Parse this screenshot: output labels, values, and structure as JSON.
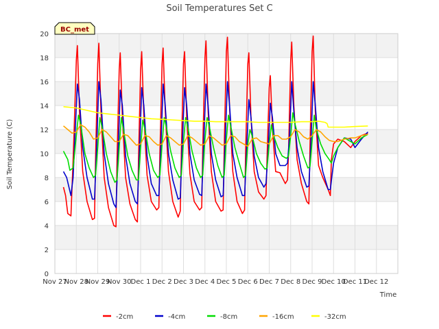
{
  "chart_data": {
    "type": "line",
    "title": "Soil Temperatures Set C",
    "xlabel": "Time",
    "ylabel": "Soil Temperature (C)",
    "site_label": "BC_met",
    "xlim": [
      0,
      16
    ],
    "ylim": [
      0,
      20
    ],
    "x_ticks": [
      {
        "x": 0,
        "label": "Nov 27"
      },
      {
        "x": 1,
        "label": "Nov 28"
      },
      {
        "x": 2,
        "label": "Nov 29"
      },
      {
        "x": 3,
        "label": "Nov 30"
      },
      {
        "x": 4,
        "label": "Dec 1"
      },
      {
        "x": 5,
        "label": "Dec 2"
      },
      {
        "x": 6,
        "label": "Dec 3"
      },
      {
        "x": 7,
        "label": "Dec 4"
      },
      {
        "x": 8,
        "label": "Dec 5"
      },
      {
        "x": 9,
        "label": "Dec 6"
      },
      {
        "x": 10,
        "label": "Dec 7"
      },
      {
        "x": 11,
        "label": "Dec 8"
      },
      {
        "x": 12,
        "label": "Dec 9"
      },
      {
        "x": 13,
        "label": "Dec 10"
      },
      {
        "x": 14,
        "label": "Dec 11"
      },
      {
        "x": 15,
        "label": "Dec 12"
      }
    ],
    "y_ticks": [
      0,
      2,
      4,
      6,
      8,
      10,
      12,
      14,
      16,
      18,
      20
    ],
    "grid": true,
    "legend_position": "bottom",
    "series": [
      {
        "name": "-2cm",
        "color": "#ff0000",
        "x": [
          0.4,
          0.5,
          0.6,
          0.75,
          0.85,
          0.9,
          1.0,
          1.05,
          1.15,
          1.3,
          1.5,
          1.75,
          1.85,
          1.9,
          2.0,
          2.05,
          2.15,
          2.3,
          2.5,
          2.75,
          2.85,
          2.9,
          3.0,
          3.05,
          3.15,
          3.3,
          3.5,
          3.75,
          3.85,
          3.9,
          4.0,
          4.05,
          4.15,
          4.3,
          4.5,
          4.75,
          4.85,
          4.9,
          5.0,
          5.05,
          5.15,
          5.3,
          5.5,
          5.75,
          5.85,
          5.9,
          6.0,
          6.05,
          6.15,
          6.3,
          6.5,
          6.75,
          6.85,
          6.9,
          7.0,
          7.05,
          7.15,
          7.3,
          7.5,
          7.75,
          7.85,
          7.9,
          8.0,
          8.05,
          8.15,
          8.3,
          8.5,
          8.75,
          8.85,
          8.9,
          9.0,
          9.05,
          9.15,
          9.3,
          9.5,
          9.75,
          9.85,
          9.9,
          10.0,
          10.05,
          10.15,
          10.3,
          10.5,
          10.75,
          10.85,
          10.9,
          11.0,
          11.05,
          11.15,
          11.3,
          11.5,
          11.75,
          11.85,
          11.9,
          12.0,
          12.05,
          12.15,
          12.3,
          12.5,
          12.75,
          12.85,
          12.9,
          13.0,
          13.2,
          13.5,
          13.8,
          14.0,
          14.3,
          14.6
        ],
        "values": [
          7.2,
          6.5,
          5.0,
          4.8,
          9.5,
          12.0,
          17.8,
          19.0,
          13.5,
          8.5,
          6.0,
          4.5,
          4.6,
          9.8,
          17.5,
          19.2,
          13.5,
          8.0,
          5.5,
          4.0,
          3.9,
          9.5,
          17.0,
          18.4,
          13.0,
          8.0,
          5.8,
          4.5,
          4.3,
          9.5,
          17.0,
          18.5,
          13.2,
          8.2,
          6.0,
          5.3,
          5.5,
          10.0,
          17.5,
          18.8,
          13.5,
          8.5,
          6.0,
          4.7,
          5.2,
          10.2,
          17.5,
          18.5,
          13.0,
          8.3,
          6.0,
          5.3,
          5.5,
          10.5,
          18.0,
          19.4,
          13.5,
          8.5,
          6.0,
          5.2,
          5.3,
          10.5,
          18.5,
          19.7,
          13.8,
          8.5,
          6.0,
          5.0,
          5.3,
          10.2,
          17.5,
          18.4,
          13.0,
          8.5,
          6.8,
          6.2,
          6.5,
          9.8,
          15.5,
          16.5,
          12.0,
          8.5,
          8.4,
          7.5,
          7.8,
          10.0,
          17.8,
          19.3,
          14.0,
          9.5,
          7.5,
          6.0,
          5.8,
          10.5,
          18.5,
          19.8,
          13.5,
          9.0,
          8.0,
          7.0,
          6.5,
          9.5,
          10.8,
          11.2,
          11.0,
          10.5,
          11.0,
          11.5,
          11.7
        ]
      },
      {
        "name": "-4cm",
        "color": "#0000cc",
        "x": [
          0.4,
          0.55,
          0.75,
          0.85,
          0.95,
          1.05,
          1.15,
          1.3,
          1.5,
          1.75,
          1.85,
          1.95,
          2.05,
          2.15,
          2.3,
          2.5,
          2.75,
          2.85,
          2.95,
          3.05,
          3.15,
          3.3,
          3.5,
          3.75,
          3.85,
          3.95,
          4.05,
          4.15,
          4.3,
          4.5,
          4.75,
          4.85,
          4.95,
          5.05,
          5.15,
          5.3,
          5.5,
          5.75,
          5.85,
          5.95,
          6.05,
          6.15,
          6.3,
          6.5,
          6.75,
          6.85,
          6.95,
          7.05,
          7.15,
          7.3,
          7.5,
          7.75,
          7.85,
          7.95,
          8.05,
          8.15,
          8.3,
          8.5,
          8.75,
          8.85,
          8.95,
          9.05,
          9.15,
          9.3,
          9.5,
          9.75,
          9.85,
          9.95,
          10.05,
          10.15,
          10.3,
          10.5,
          10.75,
          10.85,
          10.95,
          11.05,
          11.15,
          11.3,
          11.5,
          11.75,
          11.85,
          11.95,
          12.05,
          12.15,
          12.3,
          12.5,
          12.75,
          12.85,
          12.95,
          13.0,
          13.2,
          13.5,
          13.8,
          14.0,
          14.3,
          14.6
        ],
        "values": [
          8.5,
          8.0,
          6.5,
          8.0,
          12.0,
          15.8,
          14.5,
          10.5,
          8.0,
          6.2,
          6.2,
          10.5,
          16.0,
          14.5,
          10.0,
          7.5,
          5.8,
          5.5,
          10.0,
          15.3,
          14.0,
          9.8,
          7.5,
          6.0,
          5.8,
          10.2,
          15.5,
          14.0,
          9.8,
          7.5,
          6.5,
          6.5,
          10.8,
          15.8,
          14.0,
          10.0,
          7.8,
          6.2,
          6.3,
          11.0,
          15.5,
          14.0,
          10.0,
          7.8,
          6.6,
          6.5,
          11.2,
          15.8,
          14.0,
          10.0,
          7.8,
          6.4,
          6.5,
          11.2,
          16.0,
          14.0,
          10.0,
          8.0,
          6.5,
          6.5,
          10.5,
          14.5,
          13.0,
          9.8,
          8.0,
          7.2,
          7.5,
          10.2,
          14.2,
          13.0,
          10.0,
          9.0,
          9.0,
          9.2,
          11.5,
          16.0,
          13.5,
          10.5,
          8.5,
          7.2,
          7.3,
          11.0,
          16.0,
          14.0,
          10.5,
          8.5,
          7.0,
          7.0,
          8.5,
          9.2,
          10.5,
          11.3,
          11.2,
          10.5,
          11.2,
          11.8
        ]
      },
      {
        "name": "-8cm",
        "color": "#00dd00",
        "x": [
          0.4,
          0.6,
          0.7,
          0.85,
          1.0,
          1.1,
          1.2,
          1.4,
          1.6,
          1.8,
          1.9,
          2.0,
          2.1,
          2.2,
          2.4,
          2.6,
          2.8,
          2.9,
          3.0,
          3.1,
          3.2,
          3.4,
          3.6,
          3.8,
          3.9,
          4.0,
          4.1,
          4.2,
          4.4,
          4.6,
          4.8,
          4.9,
          5.0,
          5.1,
          5.2,
          5.4,
          5.6,
          5.8,
          5.9,
          6.0,
          6.1,
          6.2,
          6.4,
          6.6,
          6.8,
          6.9,
          7.0,
          7.1,
          7.2,
          7.4,
          7.6,
          7.8,
          7.9,
          8.0,
          8.1,
          8.2,
          8.4,
          8.6,
          8.8,
          8.9,
          9.0,
          9.1,
          9.2,
          9.4,
          9.6,
          9.8,
          9.9,
          10.0,
          10.1,
          10.2,
          10.4,
          10.6,
          10.8,
          10.9,
          11.0,
          11.1,
          11.2,
          11.4,
          11.6,
          11.8,
          11.9,
          12.0,
          12.1,
          12.2,
          12.4,
          12.6,
          12.8,
          12.9,
          13.0,
          13.2,
          13.5,
          13.8,
          14.0,
          14.3,
          14.6
        ],
        "values": [
          10.2,
          9.5,
          8.6,
          8.8,
          11.5,
          13.2,
          12.5,
          10.0,
          8.8,
          8.0,
          8.2,
          10.5,
          13.0,
          12.2,
          10.0,
          8.5,
          7.6,
          7.8,
          10.5,
          13.0,
          12.0,
          9.8,
          8.6,
          7.8,
          7.8,
          10.5,
          12.8,
          12.0,
          10.0,
          8.6,
          8.0,
          8.2,
          10.8,
          13.0,
          12.2,
          10.2,
          8.8,
          8.0,
          8.2,
          11.0,
          13.0,
          12.2,
          10.2,
          8.8,
          8.0,
          8.2,
          11.2,
          13.0,
          12.3,
          10.5,
          9.0,
          8.0,
          8.2,
          11.2,
          13.2,
          12.3,
          10.5,
          9.2,
          8.0,
          8.2,
          10.8,
          12.0,
          11.5,
          10.0,
          9.2,
          8.7,
          8.8,
          10.8,
          12.4,
          11.5,
          10.5,
          9.8,
          9.6,
          9.8,
          11.5,
          13.4,
          12.5,
          11.0,
          9.8,
          8.8,
          8.9,
          11.0,
          13.2,
          12.0,
          10.8,
          10.0,
          9.5,
          9.2,
          9.8,
          10.5,
          11.3,
          11.0,
          10.8,
          11.3,
          11.6
        ]
      },
      {
        "name": "-16cm",
        "color": "#ffa500",
        "x": [
          0.4,
          0.6,
          0.8,
          1.0,
          1.2,
          1.4,
          1.6,
          1.8,
          2.0,
          2.2,
          2.4,
          2.6,
          2.8,
          3.0,
          3.2,
          3.4,
          3.6,
          3.8,
          4.0,
          4.2,
          4.4,
          4.6,
          4.8,
          5.0,
          5.2,
          5.4,
          5.6,
          5.8,
          6.0,
          6.2,
          6.4,
          6.6,
          6.8,
          7.0,
          7.2,
          7.4,
          7.6,
          7.8,
          8.0,
          8.2,
          8.4,
          8.6,
          8.8,
          9.0,
          9.2,
          9.4,
          9.6,
          9.8,
          10.0,
          10.2,
          10.4,
          10.6,
          10.8,
          11.0,
          11.2,
          11.4,
          11.6,
          11.8,
          12.0,
          12.2,
          12.4,
          12.6,
          12.8,
          13.0,
          13.2,
          13.5,
          13.8,
          14.0,
          14.3,
          14.6
        ],
        "values": [
          12.3,
          12.0,
          11.7,
          11.8,
          12.4,
          12.2,
          11.8,
          11.2,
          11.3,
          12.0,
          11.8,
          11.4,
          11.0,
          11.0,
          11.6,
          11.5,
          11.1,
          10.7,
          10.8,
          11.5,
          11.4,
          11.0,
          10.7,
          10.8,
          11.5,
          11.3,
          11.0,
          10.7,
          10.8,
          11.5,
          11.3,
          11.0,
          10.7,
          10.8,
          11.5,
          11.3,
          11.0,
          10.7,
          10.8,
          11.5,
          11.4,
          11.0,
          10.8,
          10.6,
          11.2,
          11.3,
          11.0,
          10.9,
          10.8,
          11.5,
          11.5,
          11.2,
          11.2,
          11.4,
          12.0,
          11.8,
          11.4,
          11.2,
          11.5,
          12.0,
          11.8,
          11.4,
          11.1,
          11.0,
          11.0,
          11.2,
          11.3,
          11.3,
          11.5,
          11.6
        ]
      },
      {
        "name": "-32cm",
        "color": "#ffff00",
        "x": [
          0.4,
          1.0,
          1.5,
          2.0,
          2.5,
          3.0,
          3.5,
          4.0,
          4.5,
          5.0,
          5.5,
          6.0,
          6.5,
          7.0,
          7.5,
          8.0,
          8.5,
          9.0,
          9.5,
          10.0,
          10.5,
          11.0,
          11.5,
          12.0,
          12.3,
          12.6,
          12.7,
          12.75,
          13.0,
          13.5,
          14.0,
          14.6
        ],
        "values": [
          13.9,
          13.8,
          13.6,
          13.4,
          13.3,
          13.2,
          13.1,
          13.0,
          12.9,
          12.85,
          12.8,
          12.75,
          12.7,
          12.7,
          12.65,
          12.65,
          12.65,
          12.65,
          12.6,
          12.6,
          12.6,
          12.6,
          12.65,
          12.65,
          12.7,
          12.6,
          12.5,
          12.2,
          12.2,
          12.2,
          12.25,
          12.3
        ]
      }
    ]
  }
}
